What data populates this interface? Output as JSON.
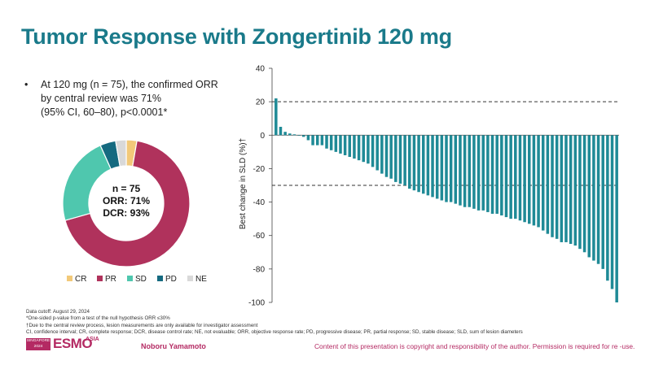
{
  "title": "Tumor Response with Zongertinib 120 mg",
  "bullet": {
    "marker": "•",
    "lines": [
      "At 120 mg (n = 75), the confirmed ORR",
      "by central review was 71%",
      "(95% CI, 60–80), p<0.0001*"
    ]
  },
  "donut": {
    "center_lines": [
      "n = 75",
      "ORR: 71%",
      "DCR: 93%"
    ],
    "slices": [
      {
        "label": "CR",
        "percent": 2.7,
        "color": "#f2c979"
      },
      {
        "label": "PR",
        "percent": 68.0,
        "color": "#b0325c"
      },
      {
        "label": "SD",
        "percent": 22.7,
        "color": "#4fc7ae"
      },
      {
        "label": "PD",
        "percent": 4.0,
        "color": "#156a80"
      },
      {
        "label": "NE",
        "percent": 2.7,
        "color": "#d9d9d9"
      }
    ]
  },
  "chart_data": {
    "type": "bar",
    "title": "",
    "xlabel": "",
    "ylabel": "Best change in SLD (%)†",
    "ylim": [
      -100,
      40
    ],
    "yticks": [
      "40",
      "20",
      "0",
      "-20",
      "-40",
      "-60",
      "-80",
      "-100"
    ],
    "reference_lines": [
      20,
      -30
    ],
    "color": "#1f8a96",
    "values": [
      22,
      5,
      2,
      1,
      0.5,
      0,
      -1,
      -3,
      -6,
      -6,
      -6,
      -8,
      -9,
      -10,
      -11,
      -12,
      -13,
      -14,
      -15,
      -16,
      -17,
      -19,
      -21,
      -23,
      -25,
      -26,
      -28,
      -29,
      -30,
      -32,
      -33,
      -34,
      -35,
      -36,
      -37,
      -38,
      -39,
      -40,
      -40,
      -41,
      -42,
      -43,
      -43,
      -44,
      -45,
      -45,
      -46,
      -47,
      -47,
      -48,
      -49,
      -50,
      -50,
      -51,
      -52,
      -53,
      -54,
      -55,
      -57,
      -59,
      -61,
      -62,
      -64,
      -64,
      -65,
      -66,
      -68,
      -70,
      -73,
      -75,
      -77,
      -80,
      -87,
      -92,
      -100
    ]
  },
  "footnotes": [
    "Data cutoff: August 29, 2024",
    "*One-sided p-value from a test of the null hypothesis ORR ≤30%",
    "†Due to the central review process, lesion measurements are only available for investigator assessment",
    "CI, confidence interval; CR, complete response; DCR, disease control rate; NE, not evaluable; ORR, objective response rate; PD, progressive disease; PR, partial response; SD, stable disease; SLD, sum of lesion diameters"
  ],
  "footer": {
    "congress_lines": [
      "SINGAPORE",
      "2024"
    ],
    "logo_text": "ESMO",
    "logo_suffix": "ASIA",
    "presenter": "Noboru Yamamoto",
    "copyright": "Content of this presentation is copyright and responsibility of the author. Permission is required for re -use."
  },
  "colors": {
    "title": "#1a7a8a",
    "brand": "#b42a63"
  }
}
